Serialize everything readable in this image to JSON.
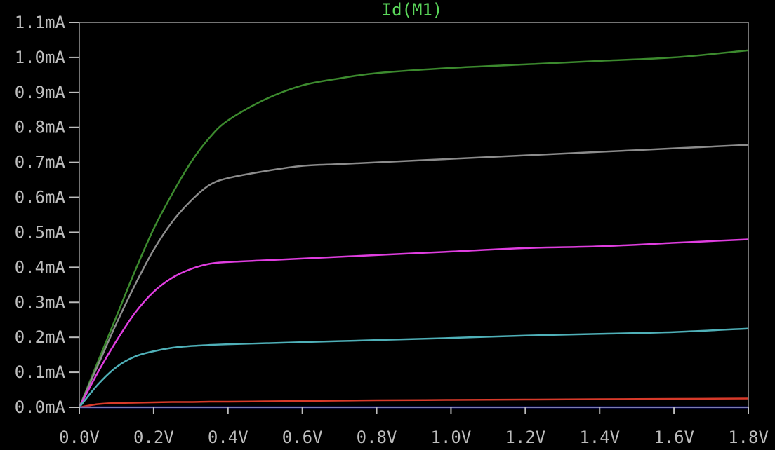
{
  "chart_data": {
    "type": "line",
    "title": "Id(M1)",
    "title_color": "#5ad65a",
    "background": "#000000",
    "frame_color": "#9a9a9a",
    "tick_color": "#bdbdbd",
    "xlabel": "",
    "ylabel": "",
    "xlim": [
      0,
      1.8
    ],
    "ylim": [
      0,
      1.1
    ],
    "x_ticks": [
      0.0,
      0.2,
      0.4,
      0.6,
      0.8,
      1.0,
      1.2,
      1.4,
      1.6,
      1.8
    ],
    "x_tick_labels": [
      "0.0V",
      "0.2V",
      "0.4V",
      "0.6V",
      "0.8V",
      "1.0V",
      "1.2V",
      "1.4V",
      "1.6V",
      "1.8V"
    ],
    "y_ticks": [
      0.0,
      0.1,
      0.2,
      0.3,
      0.4,
      0.5,
      0.6,
      0.7,
      0.8,
      0.9,
      1.0,
      1.1
    ],
    "y_tick_labels": [
      "0.0mA",
      "0.1mA",
      "0.2mA",
      "0.3mA",
      "0.4mA",
      "0.5mA",
      "0.6mA",
      "0.7mA",
      "0.8mA",
      "0.9mA",
      "1.0mA",
      "1.1mA"
    ],
    "grid": false,
    "legend": "none",
    "x": [
      0.0,
      0.05,
      0.1,
      0.15,
      0.2,
      0.25,
      0.3,
      0.35,
      0.4,
      0.5,
      0.6,
      0.7,
      0.8,
      1.0,
      1.2,
      1.4,
      1.6,
      1.8
    ],
    "series": [
      {
        "color": "#3c8a2e",
        "values": [
          0.0,
          0.13,
          0.26,
          0.39,
          0.51,
          0.61,
          0.7,
          0.77,
          0.82,
          0.88,
          0.92,
          0.94,
          0.955,
          0.97,
          0.98,
          0.99,
          1.0,
          1.02
        ]
      },
      {
        "color": "#8c8c8c",
        "values": [
          0.0,
          0.12,
          0.24,
          0.35,
          0.45,
          0.53,
          0.59,
          0.635,
          0.655,
          0.675,
          0.69,
          0.695,
          0.7,
          0.71,
          0.72,
          0.73,
          0.74,
          0.75
        ]
      },
      {
        "color": "#e03ee0",
        "values": [
          0.0,
          0.1,
          0.19,
          0.27,
          0.33,
          0.37,
          0.395,
          0.41,
          0.415,
          0.42,
          0.425,
          0.43,
          0.435,
          0.445,
          0.455,
          0.46,
          0.47,
          0.48
        ]
      },
      {
        "color": "#4fb0b8",
        "values": [
          0.0,
          0.065,
          0.115,
          0.145,
          0.16,
          0.17,
          0.175,
          0.178,
          0.18,
          0.183,
          0.186,
          0.189,
          0.192,
          0.198,
          0.205,
          0.21,
          0.215,
          0.225
        ]
      },
      {
        "color": "#d83a2a",
        "values": [
          0.0,
          0.009,
          0.012,
          0.013,
          0.014,
          0.015,
          0.015,
          0.016,
          0.016,
          0.017,
          0.018,
          0.019,
          0.02,
          0.021,
          0.022,
          0.023,
          0.024,
          0.025
        ]
      },
      {
        "color": "#2020e0",
        "values": [
          0.0,
          0.0,
          0.0,
          0.0,
          0.0,
          0.0,
          0.0,
          0.0,
          0.0,
          0.0,
          0.0,
          0.0,
          0.0,
          0.0,
          0.0,
          0.0,
          0.0,
          0.0
        ]
      }
    ]
  }
}
